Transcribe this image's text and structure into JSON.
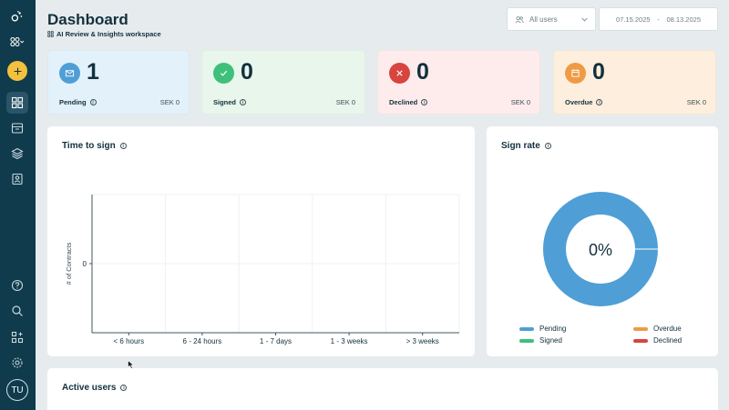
{
  "header": {
    "title": "Dashboard",
    "workspace": "AI Review & Insights workspace",
    "users_filter": "All users",
    "date_from": "07.15.2025",
    "date_sep": "-",
    "date_to": "08.13.2025"
  },
  "sidebar": {
    "avatar_initials": "TU",
    "items": [
      "dashboard-icon",
      "inbox-icon",
      "layers-icon",
      "contacts-icon"
    ],
    "bottom": [
      "help-icon",
      "search-icon",
      "integrations-icon",
      "settings-icon"
    ]
  },
  "kpis": [
    {
      "count": "1",
      "label": "Pending",
      "amount": "SEK 0",
      "bg": "#e3f1fb",
      "icon_bg": "#4f9fd6",
      "icon": "mail-icon"
    },
    {
      "count": "0",
      "label": "Signed",
      "amount": "SEK 0",
      "bg": "#e8f6ec",
      "icon_bg": "#3ec07a",
      "icon": "check-icon"
    },
    {
      "count": "0",
      "label": "Declined",
      "amount": "SEK 0",
      "bg": "#fdeceb",
      "icon_bg": "#d8443f",
      "icon": "x-icon"
    },
    {
      "count": "0",
      "label": "Overdue",
      "amount": "SEK 0",
      "bg": "#fdeedd",
      "icon_bg": "#ef9a45",
      "icon": "calendar-icon"
    }
  ],
  "time_to_sign": {
    "title": "Time to sign",
    "chart_data": {
      "type": "bar",
      "categories": [
        "< 6 hours",
        "6 - 24 hours",
        "1 - 7 days",
        "1 - 3 weeks",
        "> 3 weeks"
      ],
      "values": [
        0,
        0,
        0,
        0,
        0
      ],
      "ylabel": "# of Contracts",
      "yticks": [
        "0"
      ],
      "grid": true
    }
  },
  "sign_rate": {
    "title": "Sign rate",
    "center_label": "0%",
    "chart_data": {
      "type": "pie",
      "categories": [
        "Pending",
        "Overdue",
        "Signed",
        "Declined"
      ],
      "values": [
        1,
        0,
        0,
        0
      ],
      "colors": [
        "#4f9fd6",
        "#ef9a45",
        "#3ec07a",
        "#d8443f"
      ]
    }
  },
  "active_users": {
    "title": "Active users"
  }
}
